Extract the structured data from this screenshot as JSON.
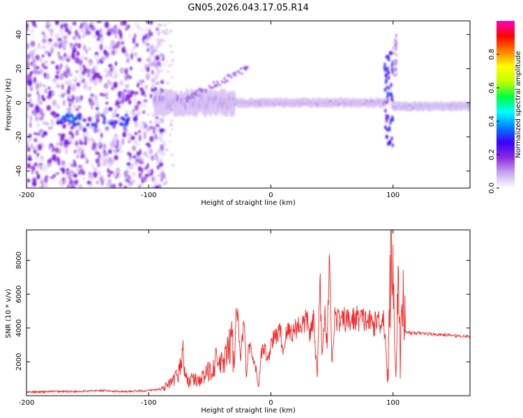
{
  "figure": {
    "title": "GN05.2026.043.17.05.R14",
    "colors": {
      "series": "#ef2a2a",
      "axis": "#000000",
      "background": "#ffffff"
    }
  },
  "chart_data": [
    {
      "type": "heatmap",
      "name": "spectrogram",
      "xlabel": "Height of straight line (km)",
      "ylabel": "Frequency (Hz)",
      "xlim": [
        -200,
        163
      ],
      "ylim": [
        -50,
        48
      ],
      "xticks": [
        -200,
        -100,
        0,
        100
      ],
      "xtick_labels": [
        "-200",
        "-100",
        "0",
        "100"
      ],
      "yticks": [
        -40,
        -20,
        0,
        20,
        40
      ],
      "ytick_labels": [
        "-40",
        "-20",
        "0",
        "20",
        "40"
      ],
      "colorbar": {
        "label": "Normalized spectral amplitude",
        "range": [
          0,
          1
        ],
        "ticks": [
          0.0,
          0.2,
          0.4,
          0.6,
          0.8
        ],
        "tick_labels": [
          "0.0",
          "0.2",
          "0.4",
          "0.6",
          "0.8"
        ],
        "colormap": [
          "#ffffff",
          "#c8a8f0",
          "#8a2be2",
          "#3a00ff",
          "#0080ff",
          "#00ffff",
          "#00ff40",
          "#c0ff00",
          "#ffff00",
          "#ff8000",
          "#ff0000",
          "#ff00c0"
        ]
      },
      "features": [
        {
          "region": "scattered noise",
          "x_range": [
            -200,
            -88
          ],
          "freq_range": [
            -50,
            48
          ],
          "amplitude": "low"
        },
        {
          "region": "carrier onset",
          "x_range": [
            -95,
            -30
          ],
          "freq_center": 0,
          "spread_hz": 10,
          "amplitude": "medium"
        },
        {
          "region": "steady carrier",
          "x_range": [
            -30,
            93
          ],
          "freq_center": 0,
          "spread_hz": 3,
          "amplitude": "high"
        },
        {
          "region": "disturbance",
          "x_range": [
            93,
            100
          ],
          "freq_range": [
            -25,
            30
          ],
          "amplitude": "medium"
        },
        {
          "region": "steady carrier",
          "x_range": [
            100,
            163
          ],
          "freq_center": -2,
          "spread_hz": 3,
          "amplitude": "medium"
        }
      ]
    },
    {
      "type": "line",
      "name": "snr",
      "xlabel": "Height of straight line (km)",
      "ylabel": "SNR (10 * v/v)",
      "xlim": [
        -200,
        163
      ],
      "ylim": [
        0,
        9800
      ],
      "xticks": [
        -200,
        -100,
        0,
        100
      ],
      "xtick_labels": [
        "-200",
        "-100",
        "0",
        "100"
      ],
      "yticks": [
        2000,
        4000,
        6000,
        8000
      ],
      "ytick_labels": [
        "2000",
        "4000",
        "6000",
        "8000"
      ],
      "series": [
        {
          "name": "SNR",
          "color": "#ef2a2a",
          "x": [
            -200,
            -180,
            -160,
            -140,
            -120,
            -100,
            -90,
            -80,
            -75,
            -72,
            -70,
            -68,
            -65,
            -60,
            -55,
            -50,
            -45,
            -40,
            -35,
            -32,
            -30,
            -28,
            -25,
            -22,
            -20,
            -18,
            -15,
            -12,
            -10,
            -8,
            -5,
            -2,
            0,
            2,
            5,
            8,
            10,
            12,
            15,
            18,
            20,
            22,
            25,
            28,
            30,
            32,
            35,
            38,
            40,
            42,
            44,
            46,
            48,
            50,
            52,
            55,
            58,
            60,
            65,
            70,
            75,
            80,
            85,
            88,
            90,
            92,
            94,
            96,
            98,
            100,
            102,
            104,
            106,
            108,
            110,
            115,
            120,
            130,
            140,
            150,
            163
          ],
          "y": [
            200,
            250,
            250,
            300,
            250,
            300,
            400,
            800,
            1500,
            2500,
            1200,
            800,
            1000,
            900,
            1100,
            1500,
            2000,
            1800,
            2500,
            3500,
            1500,
            6000,
            2000,
            4500,
            1000,
            3000,
            2200,
            1500,
            500,
            2500,
            2800,
            2000,
            3200,
            3300,
            3600,
            3800,
            2500,
            3500,
            3900,
            3700,
            4000,
            4100,
            4200,
            4300,
            4500,
            3600,
            4400,
            1000,
            7400,
            2000,
            5000,
            3000,
            8800,
            1500,
            4700,
            4500,
            4300,
            4500,
            4400,
            4600,
            4500,
            4400,
            4200,
            4600,
            4300,
            4800,
            3000,
            800,
            8000,
            9700,
            1000,
            7000,
            2000,
            6000,
            3800,
            3700,
            3700,
            3650,
            3600,
            3550,
            3500
          ]
        }
      ]
    }
  ]
}
